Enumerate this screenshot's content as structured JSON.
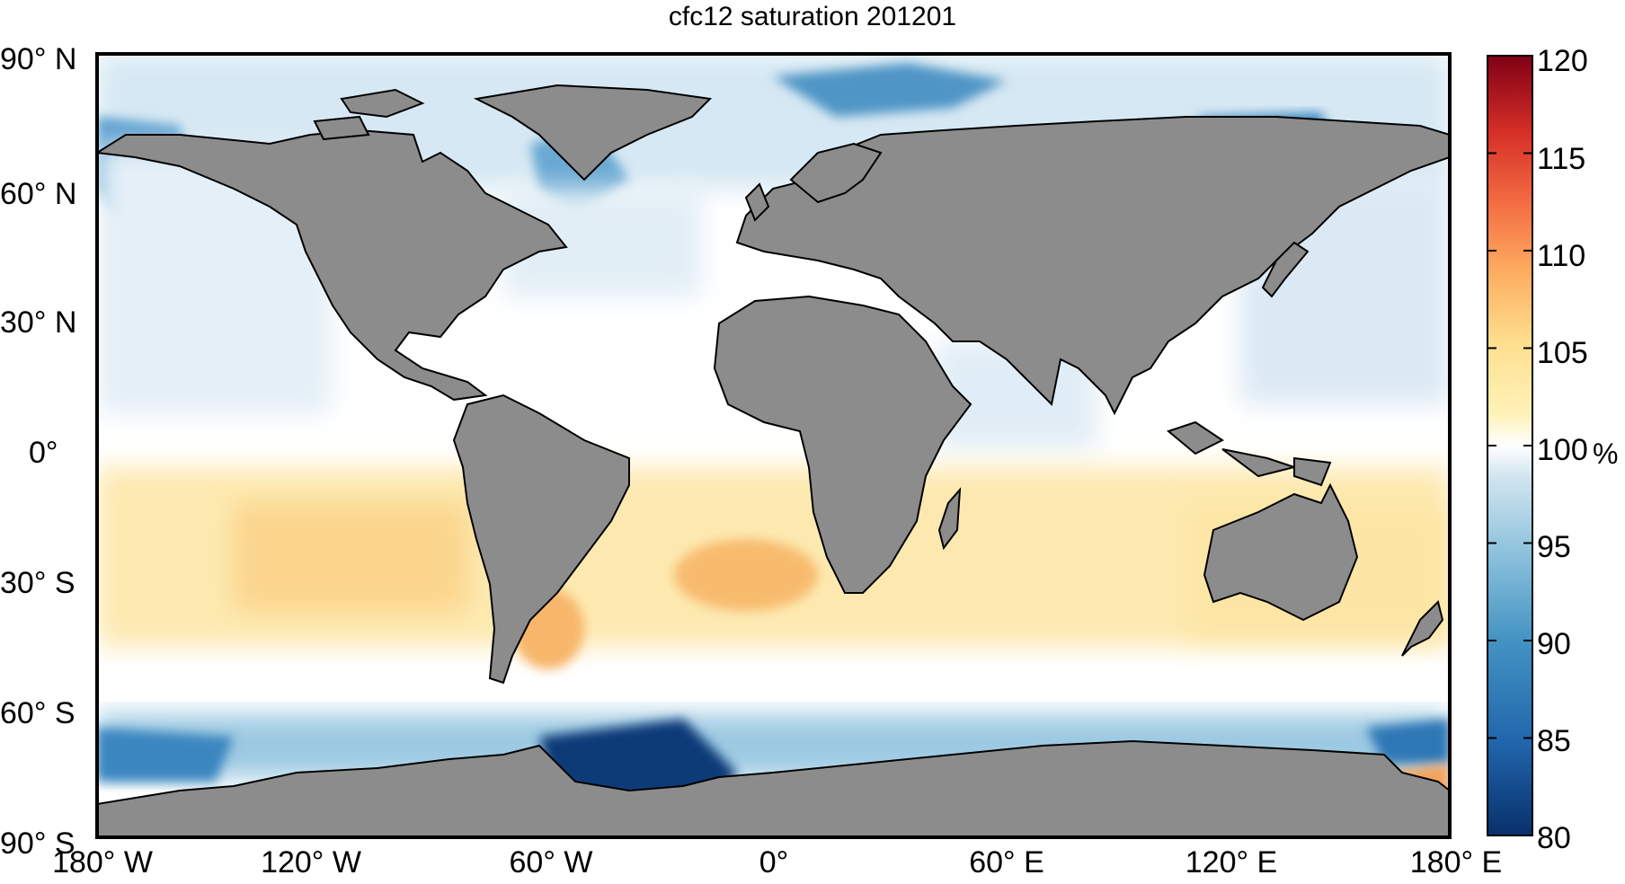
{
  "title": "cfc12 saturation 201201",
  "map": {
    "land_color": "#8c8c8c",
    "coast_color": "#000000",
    "lat_labels": [
      "90° N",
      "60° N",
      "30° N",
      "0°",
      "30° S",
      "60° S",
      "90° S"
    ],
    "lon_labels": [
      "180° W",
      "120° W",
      "60° W",
      "0°",
      "60° E",
      "120° E",
      "180° E"
    ]
  },
  "colorbar": {
    "unit": "%",
    "ticks": [
      "120",
      "115",
      "110",
      "105",
      "100",
      "95",
      "90",
      "85",
      "80"
    ],
    "min": 80,
    "max": 120,
    "colors_low_to_high": [
      "#08306b",
      "#2166ac",
      "#4393c3",
      "#92c5de",
      "#d1e5f0",
      "#ffffff",
      "#fee090",
      "#fdae61",
      "#f46d43",
      "#d73027",
      "#7f0015"
    ]
  }
}
